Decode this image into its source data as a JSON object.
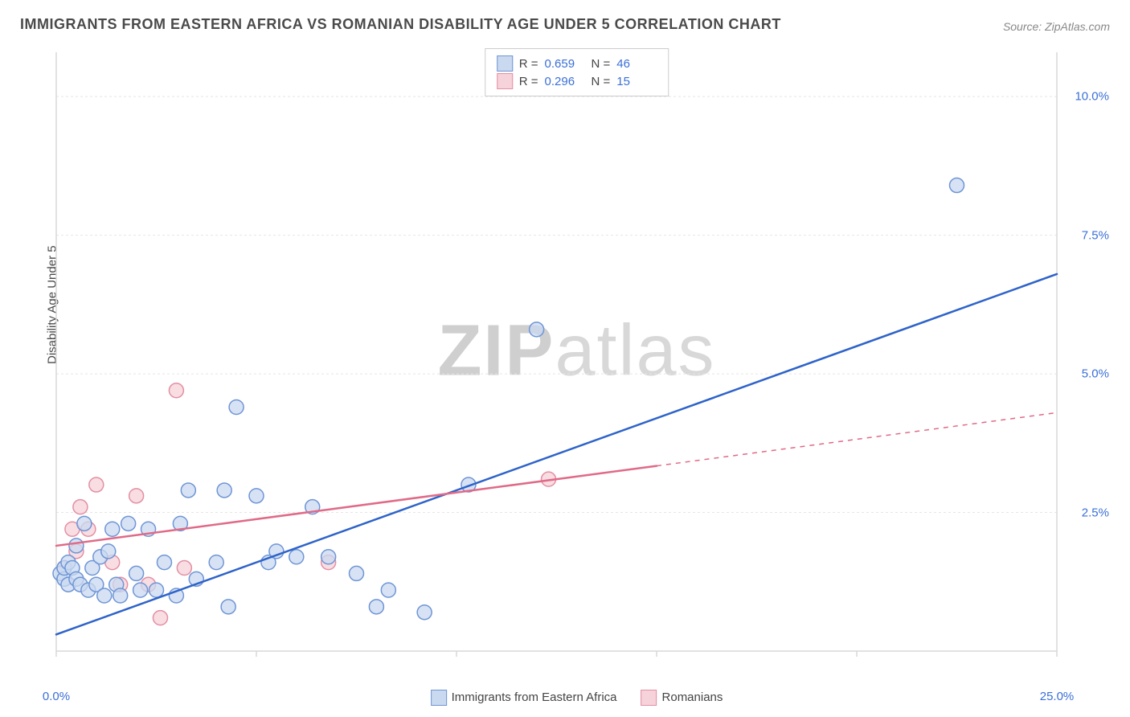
{
  "title": "IMMIGRANTS FROM EASTERN AFRICA VS ROMANIAN DISABILITY AGE UNDER 5 CORRELATION CHART",
  "source_label": "Source: ",
  "source_name": "ZipAtlas.com",
  "watermark_bold": "ZIP",
  "watermark_light": "atlas",
  "ylabel": "Disability Age Under 5",
  "chart": {
    "type": "scatter",
    "xlim": [
      0,
      25
    ],
    "ylim": [
      0,
      10.8
    ],
    "x_ticks": [
      0,
      25
    ],
    "x_tick_labels": [
      "0.0%",
      "25.0%"
    ],
    "x_minor_ticks": [
      5,
      10,
      15,
      20
    ],
    "y_ticks": [
      2.5,
      5.0,
      7.5,
      10.0
    ],
    "y_tick_labels": [
      "2.5%",
      "5.0%",
      "7.5%",
      "10.0%"
    ],
    "background_color": "#ffffff",
    "grid_color": "#e5e5e5",
    "axis_color": "#d8d8d8",
    "marker_radius": 9,
    "marker_stroke_width": 1.5,
    "line_width": 2.5,
    "series": [
      {
        "name": "Immigrants from Eastern Africa",
        "fill": "#c9d9f0",
        "stroke": "#6f95d6",
        "line_color": "#2e63c9",
        "r": 0.659,
        "n": 46,
        "trend": {
          "x1": 0,
          "y1": 0.3,
          "x2": 25,
          "y2": 6.8,
          "solid_to_x": 25
        },
        "points": [
          [
            0.1,
            1.4
          ],
          [
            0.2,
            1.3
          ],
          [
            0.2,
            1.5
          ],
          [
            0.3,
            1.2
          ],
          [
            0.3,
            1.6
          ],
          [
            0.4,
            1.5
          ],
          [
            0.5,
            1.3
          ],
          [
            0.5,
            1.9
          ],
          [
            0.6,
            1.2
          ],
          [
            0.7,
            2.3
          ],
          [
            0.8,
            1.1
          ],
          [
            0.9,
            1.5
          ],
          [
            1.0,
            1.2
          ],
          [
            1.1,
            1.7
          ],
          [
            1.2,
            1.0
          ],
          [
            1.3,
            1.8
          ],
          [
            1.4,
            2.2
          ],
          [
            1.5,
            1.2
          ],
          [
            1.6,
            1.0
          ],
          [
            1.8,
            2.3
          ],
          [
            2.0,
            1.4
          ],
          [
            2.1,
            1.1
          ],
          [
            2.3,
            2.2
          ],
          [
            2.5,
            1.1
          ],
          [
            2.7,
            1.6
          ],
          [
            3.0,
            1.0
          ],
          [
            3.1,
            2.3
          ],
          [
            3.3,
            2.9
          ],
          [
            3.5,
            1.3
          ],
          [
            4.0,
            1.6
          ],
          [
            4.2,
            2.9
          ],
          [
            4.3,
            0.8
          ],
          [
            4.5,
            4.4
          ],
          [
            5.0,
            2.8
          ],
          [
            5.3,
            1.6
          ],
          [
            5.5,
            1.8
          ],
          [
            6.0,
            1.7
          ],
          [
            6.4,
            2.6
          ],
          [
            6.8,
            1.7
          ],
          [
            7.5,
            1.4
          ],
          [
            8.0,
            0.8
          ],
          [
            8.3,
            1.1
          ],
          [
            9.2,
            0.7
          ],
          [
            10.3,
            3.0
          ],
          [
            12.0,
            5.8
          ],
          [
            22.5,
            8.4
          ]
        ]
      },
      {
        "name": "Romanians",
        "fill": "#f6d2da",
        "stroke": "#e48fa3",
        "line_color": "#e06a87",
        "r": 0.296,
        "n": 15,
        "trend": {
          "x1": 0,
          "y1": 1.9,
          "x2": 25,
          "y2": 4.3,
          "solid_to_x": 15
        },
        "points": [
          [
            0.2,
            1.5
          ],
          [
            0.4,
            2.2
          ],
          [
            0.5,
            1.8
          ],
          [
            0.6,
            2.6
          ],
          [
            0.8,
            2.2
          ],
          [
            1.0,
            3.0
          ],
          [
            1.4,
            1.6
          ],
          [
            1.6,
            1.2
          ],
          [
            2.0,
            2.8
          ],
          [
            2.3,
            1.2
          ],
          [
            2.6,
            0.6
          ],
          [
            3.0,
            4.7
          ],
          [
            3.2,
            1.5
          ],
          [
            6.8,
            1.6
          ],
          [
            12.3,
            3.1
          ]
        ]
      }
    ],
    "legend_r_label": "R =",
    "legend_n_label": "N ="
  }
}
